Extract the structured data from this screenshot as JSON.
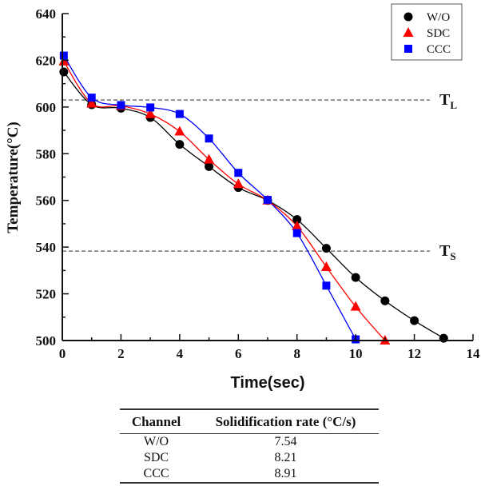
{
  "chart_data": {
    "type": "line",
    "title": "",
    "xlabel": "Time(sec)",
    "ylabel": "Temperature(°C)",
    "xlim": [
      0,
      14
    ],
    "ylim": [
      500,
      640
    ],
    "xticks": [
      0,
      2,
      4,
      6,
      8,
      10,
      12,
      14
    ],
    "yticks": [
      500,
      520,
      540,
      560,
      580,
      600,
      620,
      640
    ],
    "grid": false,
    "legend_position": "top-right",
    "series": [
      {
        "name": "W/O",
        "marker": "circle",
        "color": "#000000",
        "x": [
          0.05,
          1,
          2,
          3,
          4,
          5,
          6,
          7,
          8,
          9,
          10,
          11,
          12,
          13
        ],
        "y": [
          615,
          601,
          599.5,
          595.5,
          584,
          574.5,
          565.5,
          560,
          551.8,
          539.5,
          527,
          517,
          508.5,
          501
        ]
      },
      {
        "name": "SDC",
        "marker": "triangle",
        "color": "#ff0000",
        "x": [
          0.05,
          1,
          2,
          3,
          4,
          5,
          6,
          7,
          8,
          9,
          10,
          11
        ],
        "y": [
          619.5,
          601.5,
          600.5,
          597,
          589.5,
          577.5,
          567,
          560,
          549,
          531.5,
          514.5,
          500
        ]
      },
      {
        "name": "CCC",
        "marker": "square",
        "color": "#0000ff",
        "x": [
          0.05,
          1,
          2,
          3,
          4,
          5,
          6,
          7,
          8,
          9,
          10
        ],
        "y": [
          622,
          604,
          600.8,
          599.8,
          597,
          586.5,
          571.8,
          560.2,
          546,
          523.5,
          500.5
        ]
      }
    ],
    "reference_lines": [
      {
        "name": "TL",
        "label_main": "T",
        "label_sub": "L",
        "y": 603
      },
      {
        "name": "TS",
        "label_main": "T",
        "label_sub": "S",
        "y": 538.3
      }
    ]
  },
  "table": {
    "headers": [
      "Channel",
      "Solidification rate (°C/s)"
    ],
    "rows": [
      [
        "W/O",
        "7.54"
      ],
      [
        "SDC",
        "8.21"
      ],
      [
        "CCC",
        "8.91"
      ]
    ]
  }
}
